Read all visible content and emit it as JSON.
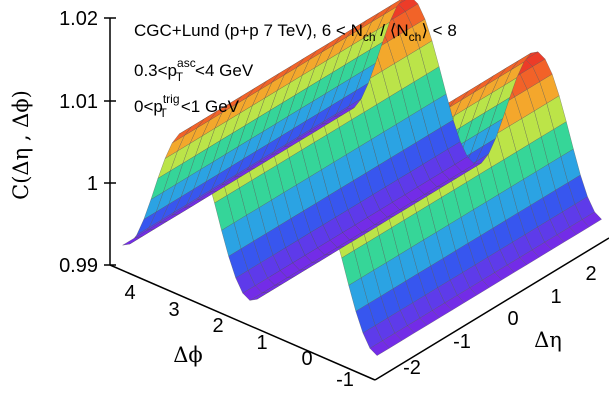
{
  "chart_data": {
    "type": "surface3d",
    "title": "",
    "legend_lines": [
      {
        "prefix": "CGC+Lund (p+p 7 TeV), 6 < N",
        "sub1": "ch",
        "mid": " / ⟨N",
        "sub2": "ch",
        "suffix": "⟩ < 8"
      },
      {
        "prefix": "0.3<p",
        "sub": "T",
        "sup": "asc",
        "suffix": "<4 GeV"
      },
      {
        "prefix": "0<p",
        "sub": "T",
        "sup": "trig",
        "suffix": "<1 GeV"
      }
    ],
    "zlabel": "C(Δη , Δϕ)",
    "xlabel": "Δϕ",
    "ylabel": "Δη",
    "zlim": [
      0.99,
      1.02
    ],
    "z_ticks": [
      "0.99",
      "1",
      "1.01",
      "1.02"
    ],
    "x_ticks": [
      "-1",
      "0",
      "1",
      "2",
      "3",
      "4"
    ],
    "y_ticks": [
      "-2",
      "-1",
      "0",
      "1",
      "2"
    ],
    "xlim": [
      -1.57,
      4.71
    ],
    "ylim": [
      -2.5,
      2.5
    ],
    "surface": {
      "form": "C = 1 + a*cos(2*Δϕ)",
      "a": 0.0085,
      "colormap": "rainbow (violet at minimum, red at maximum)"
    }
  }
}
